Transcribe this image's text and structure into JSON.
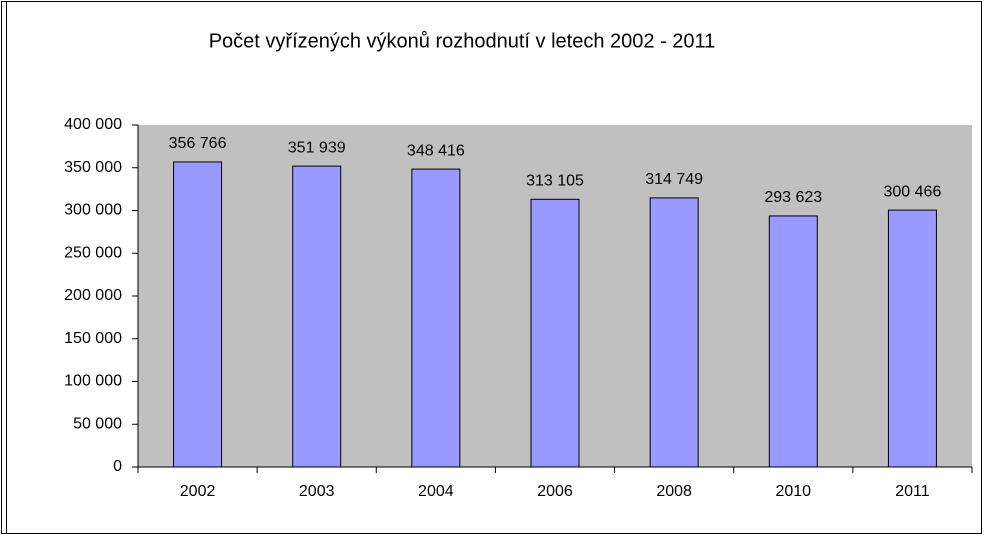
{
  "chart_data": {
    "type": "bar",
    "title": "Počet vyřízených výkonů rozhodnutí v letech 2002 - 2011",
    "categories": [
      "2002",
      "2003",
      "2004",
      "2006",
      "2008",
      "2010",
      "2011"
    ],
    "values": [
      356766,
      351939,
      348416,
      313105,
      314749,
      293623,
      300466
    ],
    "value_labels": [
      "356 766",
      "351 939",
      "348 416",
      "313 105",
      "314 749",
      "293 623",
      "300 466"
    ],
    "color": "#9999ff",
    "ylim": [
      0,
      400000
    ],
    "yticks": [
      0,
      {
        "value": 50000,
        "label": "50 000"
      },
      {
        "value": 100000,
        "label": "100 000"
      },
      {
        "value": 150000,
        "label": "150 000"
      },
      {
        "value": 200000,
        "label": "200 000"
      },
      {
        "value": 250000,
        "label": "250 000"
      },
      {
        "value": 300000,
        "label": "300 000"
      },
      {
        "value": 350000,
        "label": "350 000"
      },
      {
        "value": 400000,
        "label": "400 000"
      }
    ],
    "grid": false
  }
}
